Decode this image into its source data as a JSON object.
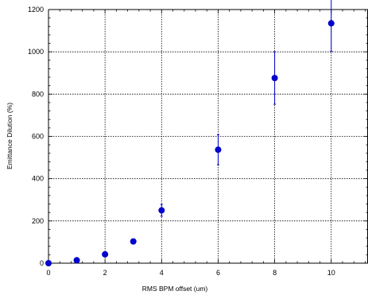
{
  "chart_data": {
    "type": "scatter",
    "title": "",
    "xlabel": "RMS BPM offset (um)",
    "ylabel": "Emittance Dilution (%)",
    "xlim": [
      0,
      11.3
    ],
    "ylim": [
      0,
      1200
    ],
    "xticks": [
      0,
      2,
      4,
      6,
      8,
      10
    ],
    "yticks": [
      0,
      200,
      400,
      600,
      800,
      1000,
      1200
    ],
    "grid": true,
    "legend": "none",
    "series": [
      {
        "x": [
          0,
          1,
          2,
          3,
          4,
          6,
          8,
          10
        ],
        "y": [
          0,
          14,
          42,
          103,
          250,
          537,
          876,
          1135
        ],
        "err_low": [
          0,
          11,
          35,
          97,
          222,
          466,
          752,
          1002
        ],
        "err_high": [
          0,
          17,
          49,
          109,
          278,
          608,
          1000,
          1269
        ],
        "color": "#0000cc"
      }
    ]
  }
}
